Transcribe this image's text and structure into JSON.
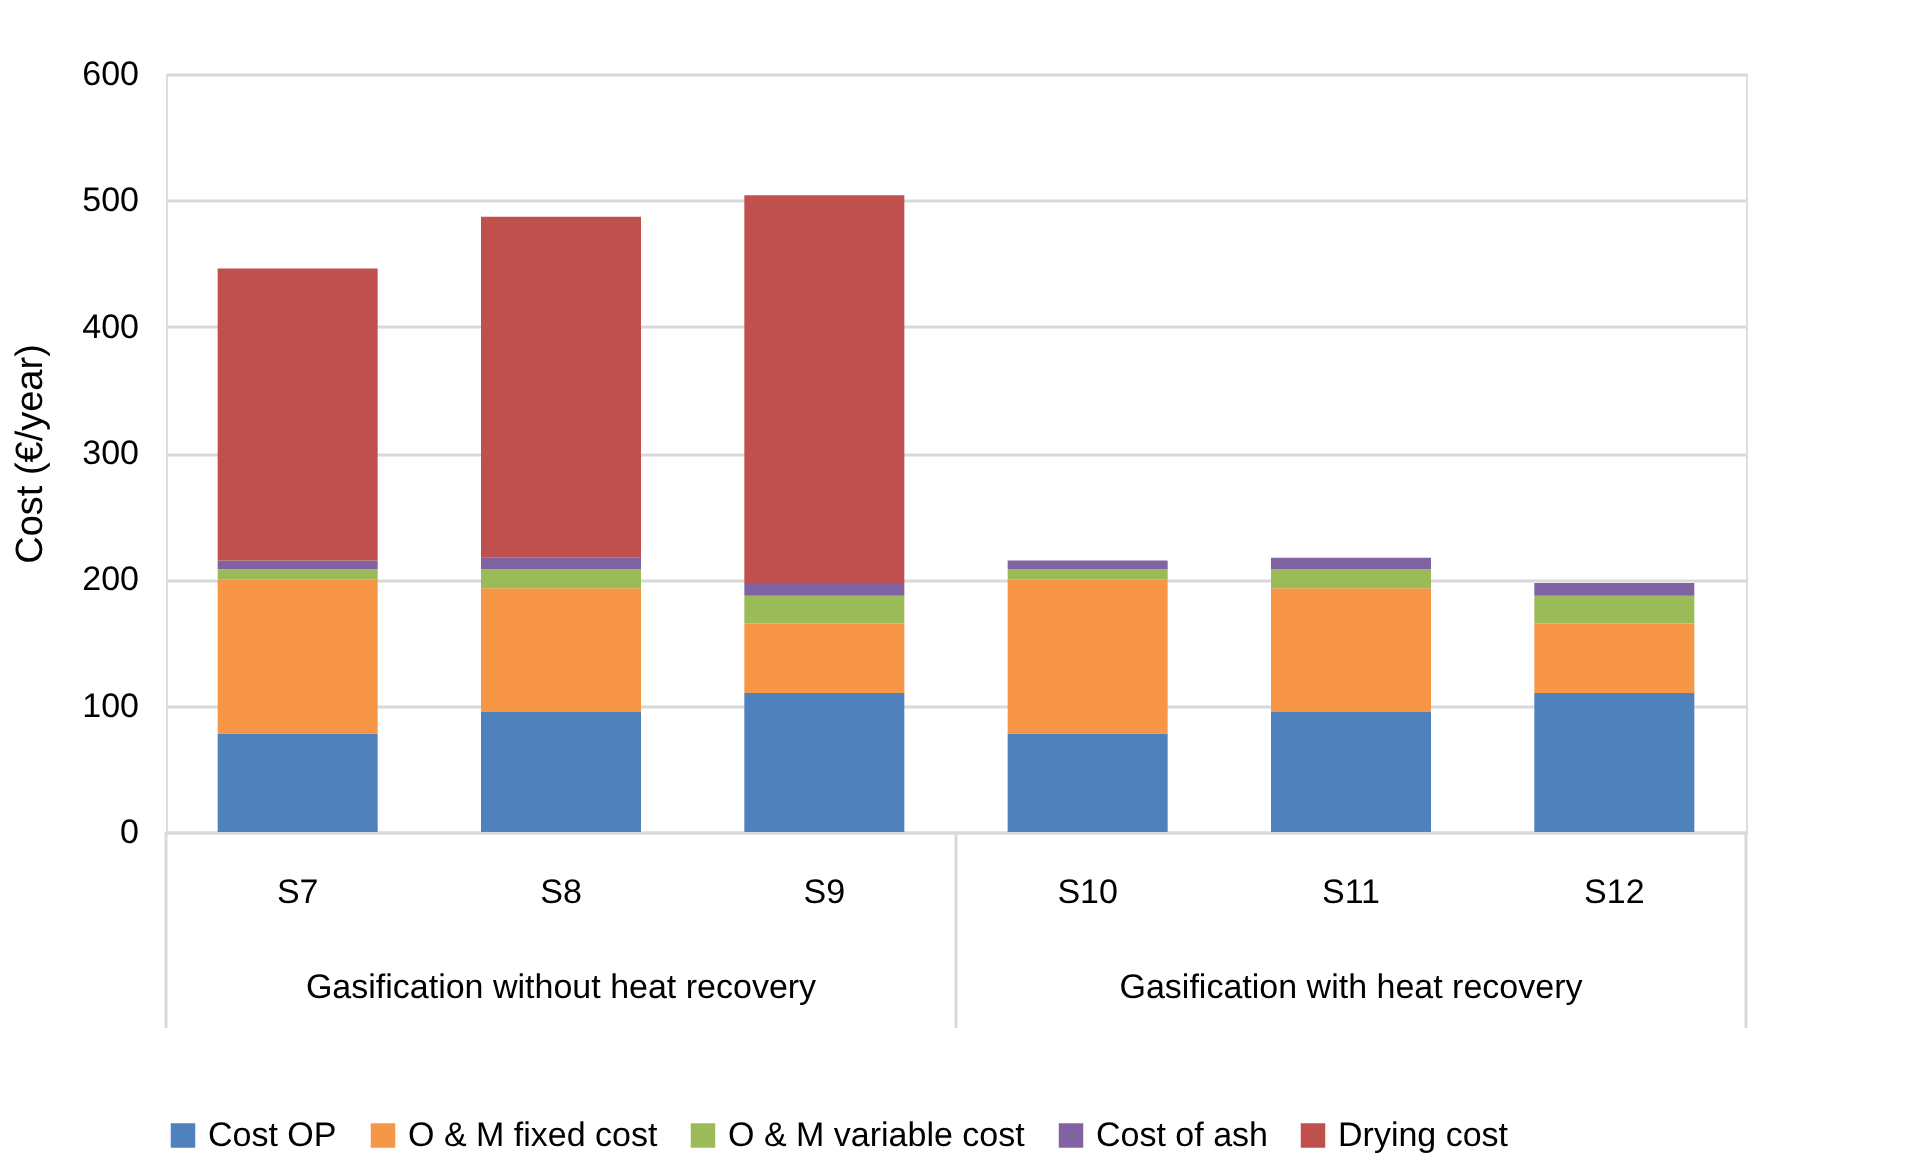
{
  "chart_data": {
    "type": "bar",
    "stacked": true,
    "ylabel": "Cost (€/year)",
    "categories": [
      "S7",
      "S8",
      "S9",
      "S10",
      "S11",
      "S12"
    ],
    "annotations": [
      "Gasification without heat recovery",
      "Gasification with heat recovery"
    ],
    "series": [
      {
        "name": "Cost OP",
        "color": "#4f81bd",
        "values": [
          78,
          95,
          110,
          78,
          95,
          110
        ]
      },
      {
        "name": "O & M fixed cost",
        "color": "#f79646",
        "values": [
          122,
          98,
          55,
          122,
          98,
          55
        ]
      },
      {
        "name": "O & M variable cost",
        "color": "#9bbb59",
        "values": [
          8,
          15,
          22,
          8,
          15,
          22
        ]
      },
      {
        "name": "Cost of ash",
        "color": "#8064a2",
        "values": [
          7,
          9,
          10,
          7,
          9,
          10
        ]
      },
      {
        "name": "Drying cost",
        "color": "#c0504d",
        "values": [
          231,
          270,
          307,
          0,
          0,
          0
        ]
      }
    ],
    "ylim": [
      0,
      600
    ],
    "yticks": [
      0,
      100,
      200,
      300,
      400,
      500,
      600
    ],
    "grid": "y",
    "legend": "bottom"
  }
}
